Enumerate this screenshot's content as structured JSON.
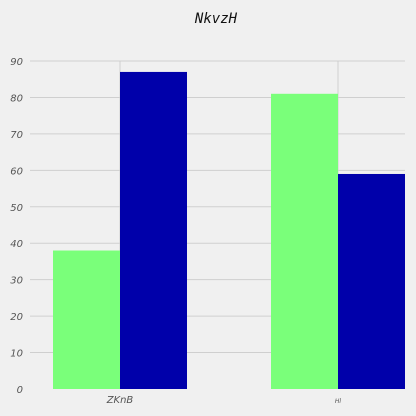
{
  "chart_data": {
    "type": "bar",
    "title": "NkvzH",
    "categories": [
      "ZKnB",
      "Hl"
    ],
    "series": [
      {
        "values": [
          38,
          81
        ],
        "color": "#7aff7a"
      },
      {
        "values": [
          87,
          59
        ],
        "color": "#0000aa"
      }
    ],
    "ylim": [
      0,
      90
    ],
    "yticks": [
      0,
      10,
      20,
      30,
      40,
      50,
      60,
      70,
      80,
      90
    ],
    "xlabel": "",
    "ylabel": "",
    "grid": true,
    "legend": "none",
    "background": "#f0f0f0"
  }
}
